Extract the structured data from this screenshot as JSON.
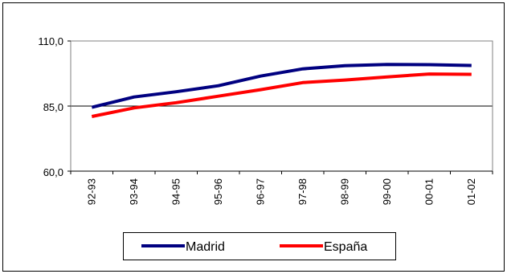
{
  "chart_data": {
    "type": "line",
    "categories": [
      "92-93",
      "93-94",
      "94-95",
      "95-96",
      "96-97",
      "97-98",
      "98-99",
      "99-00",
      "00-01",
      "01-02"
    ],
    "series": [
      {
        "name": "Madrid",
        "color": "#000080",
        "values": [
          84.5,
          88.5,
          90.5,
          92.8,
          96.5,
          99.3,
          100.5,
          101.0,
          100.9,
          100.6
        ]
      },
      {
        "name": "España",
        "color": "#FF0000",
        "values": [
          81.0,
          84.3,
          86.3,
          88.8,
          91.3,
          94.0,
          95.0,
          96.2,
          97.3,
          97.2
        ]
      }
    ],
    "yticks": [
      "60,0",
      "85,0",
      "110,0"
    ],
    "ylim": [
      60,
      110
    ],
    "grid": "horizontal",
    "legend_position": "bottom"
  }
}
